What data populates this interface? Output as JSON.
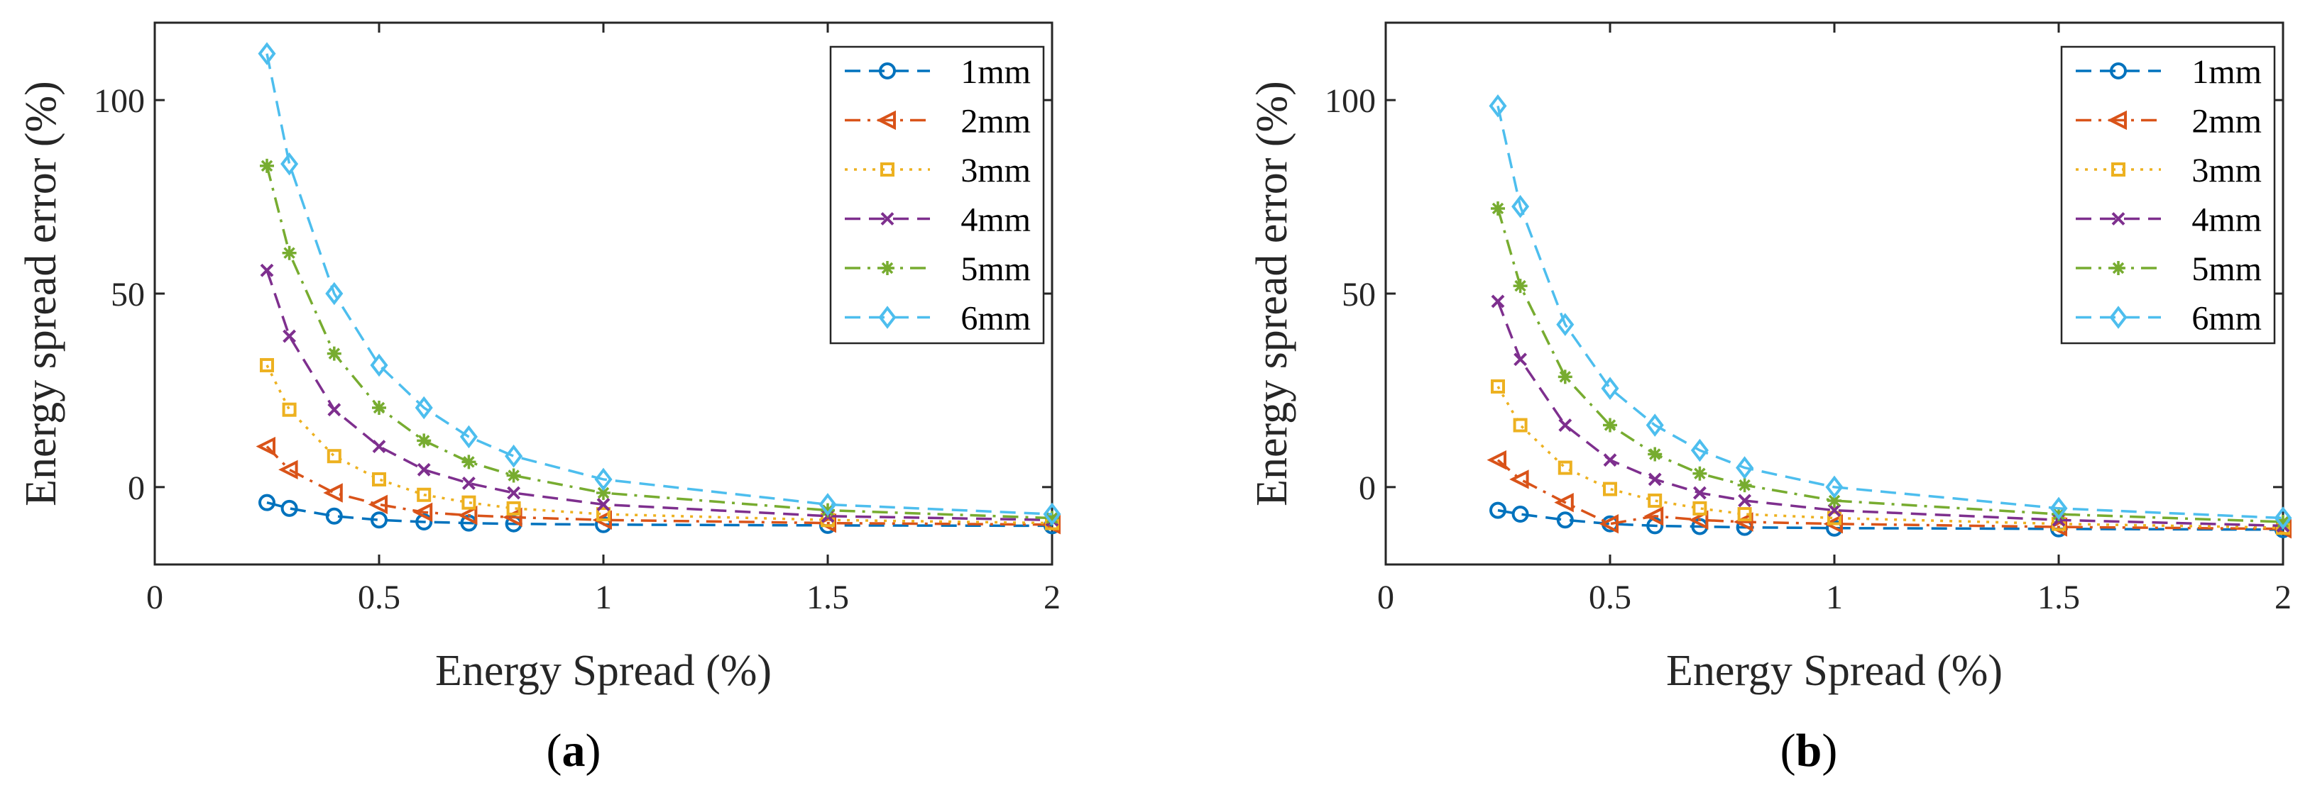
{
  "chart_data": [
    {
      "type": "line",
      "caption_letter": "a",
      "xlabel": "Energy Spread (%)",
      "ylabel": "Energy spread error (%)",
      "xlim": [
        0,
        2
      ],
      "ylim": [
        -20,
        120
      ],
      "xticks": [
        0,
        0.5,
        1,
        1.5,
        2
      ],
      "yticks": [
        0,
        50,
        100
      ],
      "grid": false,
      "legend_position": "top-right",
      "x": [
        0.25,
        0.3,
        0.4,
        0.5,
        0.6,
        0.7,
        0.8,
        1,
        1.5,
        2
      ],
      "series": [
        {
          "name": "1mm",
          "color": "#0072BD",
          "marker": "circle",
          "dash": "dashed",
          "values": [
            -4,
            -5.5,
            -7.5,
            -8.5,
            -9,
            -9.3,
            -9.5,
            -9.7,
            -9.9,
            -10
          ]
        },
        {
          "name": "2mm",
          "color": "#D95319",
          "marker": "triangle-left",
          "dash": "dashdot",
          "values": [
            10.5,
            4.5,
            -1.5,
            -4.5,
            -6.5,
            -7.3,
            -7.8,
            -8.5,
            -9.3,
            -9.7
          ]
        },
        {
          "name": "3mm",
          "color": "#EDB120",
          "marker": "square",
          "dash": "dotted",
          "values": [
            31.5,
            20,
            8,
            2,
            -2,
            -4,
            -5.5,
            -7,
            -8.5,
            -9.3
          ]
        },
        {
          "name": "4mm",
          "color": "#7E2F8E",
          "marker": "x",
          "dash": "dashed",
          "values": [
            56,
            39,
            20,
            10.5,
            4.5,
            1,
            -1.5,
            -4.5,
            -7.5,
            -8.5
          ]
        },
        {
          "name": "5mm",
          "color": "#77AC30",
          "marker": "asterisk",
          "dash": "dashdot",
          "values": [
            83,
            60.5,
            34.5,
            20.5,
            12,
            6.5,
            3,
            -1.5,
            -6,
            -8
          ]
        },
        {
          "name": "6mm",
          "color": "#4DBEEE",
          "marker": "diamond",
          "dash": "dashed",
          "values": [
            112,
            83.5,
            50,
            31.5,
            20.5,
            13,
            8,
            2,
            -4.5,
            -7
          ]
        }
      ]
    },
    {
      "type": "line",
      "caption_letter": "b",
      "xlabel": "Energy Spread (%)",
      "ylabel": "Energy spread error (%)",
      "xlim": [
        0,
        2
      ],
      "ylim": [
        -20,
        120
      ],
      "xticks": [
        0,
        0.5,
        1,
        1.5,
        2
      ],
      "yticks": [
        0,
        50,
        100
      ],
      "grid": false,
      "legend_position": "top-right",
      "x": [
        0.25,
        0.3,
        0.4,
        0.5,
        0.6,
        0.7,
        0.8,
        1,
        1.5,
        2
      ],
      "series": [
        {
          "name": "1mm",
          "color": "#0072BD",
          "marker": "circle",
          "dash": "dashed",
          "values": [
            -6,
            -7,
            -8.5,
            -9.5,
            -10,
            -10.2,
            -10.4,
            -10.6,
            -10.8,
            -11
          ]
        },
        {
          "name": "2mm",
          "color": "#D95319",
          "marker": "triangle-left",
          "dash": "dashdot",
          "values": [
            7,
            2,
            -4,
            -9.5,
            -7.5,
            -8.5,
            -9,
            -9.5,
            -10.3,
            -10.8
          ]
        },
        {
          "name": "3mm",
          "color": "#EDB120",
          "marker": "square",
          "dash": "dotted",
          "values": [
            26,
            16,
            5,
            -0.5,
            -3.5,
            -5.5,
            -7,
            -8,
            -9.5,
            -10.5
          ]
        },
        {
          "name": "4mm",
          "color": "#7E2F8E",
          "marker": "x",
          "dash": "dashed",
          "values": [
            48,
            33,
            16,
            7,
            2,
            -1.5,
            -3.5,
            -6,
            -8.5,
            -10
          ]
        },
        {
          "name": "5mm",
          "color": "#77AC30",
          "marker": "asterisk",
          "dash": "dashdot",
          "values": [
            72,
            52,
            28.5,
            16,
            8.5,
            3.5,
            0.5,
            -3.5,
            -7,
            -9
          ]
        },
        {
          "name": "6mm",
          "color": "#4DBEEE",
          "marker": "diamond",
          "dash": "dashed",
          "values": [
            98.5,
            72.5,
            42,
            25.5,
            16,
            9.5,
            5,
            0,
            -5.5,
            -8
          ]
        }
      ]
    }
  ]
}
